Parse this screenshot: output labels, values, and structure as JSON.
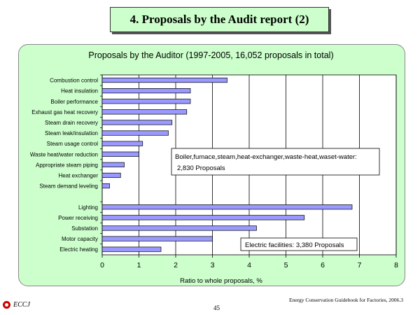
{
  "header": {
    "title": "4. Proposals by the Audit report  (2)"
  },
  "chart_data": {
    "type": "bar",
    "orientation": "horizontal",
    "title": "Proposals by the Auditor (1997-2005, 16,052 proposals in total)",
    "xlabel": "Ratio to whole proposals, %",
    "ylabel": "",
    "xlim": [
      0,
      8
    ],
    "x_ticks": [
      0,
      1,
      2,
      3,
      4,
      5,
      6,
      7,
      8
    ],
    "grid": "vertical",
    "bar_color": "#9999ff",
    "groups": [
      {
        "categories": [
          "Combustion control",
          "Heat insulation",
          "Boiler performance",
          "Exhaust gas heat recovery",
          "Steam drain recovery",
          "Steam leak/insulation",
          "Steam usage control",
          "Waste heat/water reduction",
          "Appropriate steam piping",
          "Heat exchanger",
          "Steam demand leveling"
        ],
        "values": [
          3.4,
          2.4,
          2.4,
          2.3,
          1.9,
          1.8,
          1.1,
          1.0,
          0.6,
          0.5,
          0.2
        ]
      },
      {
        "categories": [
          "Lighting",
          "Power receiving",
          "Substation",
          "Motor capacity",
          "Electric heating"
        ],
        "values": [
          6.8,
          5.5,
          4.2,
          3.0,
          1.6
        ]
      }
    ],
    "annotations": [
      {
        "text_line1": "Boiler,fumace,steam,heat-exchanger,waste-heat,waset-water:",
        "text_line2": "2,830 Proposals"
      },
      {
        "text_line1": "Electric facilities: 3,380 Proposals",
        "text_line2": ""
      }
    ]
  },
  "footer": {
    "source": "Energy Conservation Guidebook for Factories, 2006.3",
    "page_number": "45",
    "logo_text": "ECCJ"
  },
  "colors": {
    "panel_bg": "#ccffcc",
    "bar": "#9999ff",
    "logo_red": "#cc0000"
  }
}
